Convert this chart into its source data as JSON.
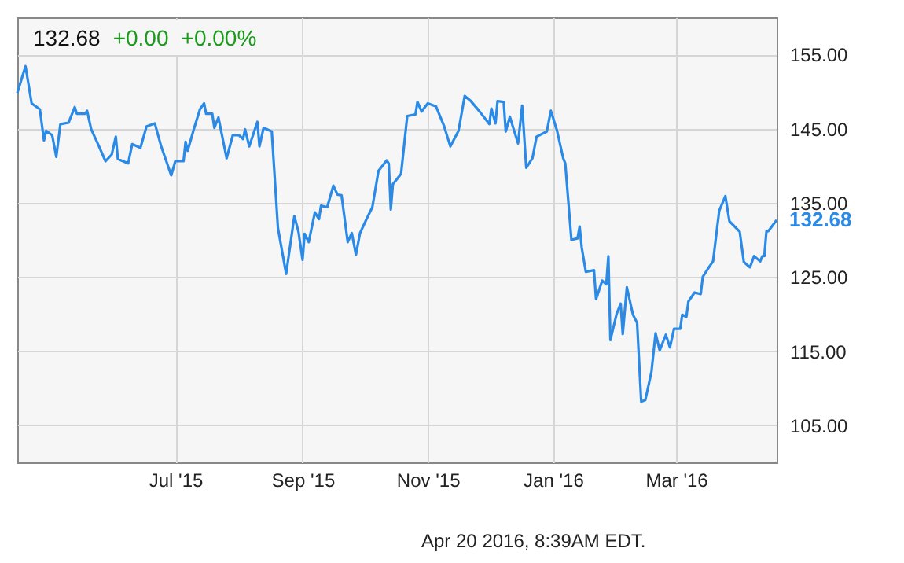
{
  "chart_data": {
    "type": "line",
    "x": [
      "2015-04-15",
      "2015-04-19",
      "2015-04-22",
      "2015-04-26",
      "2015-04-28",
      "2015-04-29",
      "2015-05-02",
      "2015-05-04",
      "2015-05-06",
      "2015-05-10",
      "2015-05-13",
      "2015-05-14",
      "2015-05-18",
      "2015-05-19",
      "2015-05-21",
      "2015-05-24",
      "2015-05-28",
      "2015-05-31",
      "2015-06-02",
      "2015-06-03",
      "2015-06-08",
      "2015-06-10",
      "2015-06-14",
      "2015-06-17",
      "2015-06-21",
      "2015-06-24",
      "2015-06-29",
      "2015-07-01",
      "2015-07-05",
      "2015-07-06",
      "2015-07-07",
      "2015-07-10",
      "2015-07-13",
      "2015-07-15",
      "2015-07-16",
      "2015-07-19",
      "2015-07-20",
      "2015-07-22",
      "2015-07-26",
      "2015-07-29",
      "2015-08-01",
      "2015-08-03",
      "2015-08-04",
      "2015-08-06",
      "2015-08-10",
      "2015-08-11",
      "2015-08-13",
      "2015-08-17",
      "2015-08-20",
      "2015-08-24",
      "2015-08-28",
      "2015-08-30",
      "2015-09-01",
      "2015-09-02",
      "2015-09-04",
      "2015-09-07",
      "2015-09-09",
      "2015-09-10",
      "2015-09-13",
      "2015-09-16",
      "2015-09-18",
      "2015-09-20",
      "2015-09-23",
      "2015-09-25",
      "2015-09-27",
      "2015-09-29",
      "2015-10-02",
      "2015-10-05",
      "2015-10-08",
      "2015-10-12",
      "2015-10-13",
      "2015-10-14",
      "2015-10-15",
      "2015-10-19",
      "2015-10-22",
      "2015-10-26",
      "2015-10-27",
      "2015-10-29",
      "2015-11-01",
      "2015-11-05",
      "2015-11-09",
      "2015-11-12",
      "2015-11-16",
      "2015-11-19",
      "2015-11-22",
      "2015-11-26",
      "2015-12-01",
      "2015-12-02",
      "2015-12-04",
      "2015-12-05",
      "2015-12-08",
      "2015-12-09",
      "2015-12-11",
      "2015-12-15",
      "2015-12-17",
      "2015-12-19",
      "2015-12-22",
      "2015-12-24",
      "2015-12-29",
      "2015-12-31",
      "2016-01-03",
      "2016-01-06",
      "2016-01-07",
      "2016-01-10",
      "2016-01-13",
      "2016-01-14",
      "2016-01-15",
      "2016-01-17",
      "2016-01-21",
      "2016-01-22",
      "2016-01-25",
      "2016-01-27",
      "2016-01-28",
      "2016-01-29",
      "2016-02-01",
      "2016-02-03",
      "2016-02-04",
      "2016-02-06",
      "2016-02-09",
      "2016-02-11",
      "2016-02-13",
      "2016-02-15",
      "2016-02-18",
      "2016-02-20",
      "2016-02-22",
      "2016-02-25",
      "2016-02-27",
      "2016-02-29",
      "2016-03-03",
      "2016-03-04",
      "2016-03-06",
      "2016-03-07",
      "2016-03-10",
      "2016-03-13",
      "2016-03-14",
      "2016-03-17",
      "2016-03-19",
      "2016-03-22",
      "2016-03-25",
      "2016-03-27",
      "2016-04-01",
      "2016-04-03",
      "2016-04-06",
      "2016-04-08",
      "2016-04-11",
      "2016-04-12",
      "2016-04-13",
      "2016-04-14",
      "2016-04-15",
      "2016-04-19"
    ],
    "series": [
      {
        "color": "#2a8ae6",
        "values": [
          149.8,
          153.4,
          148.4,
          147.6,
          143.4,
          144.7,
          144.1,
          141.2,
          145.6,
          145.8,
          147.9,
          147.0,
          147.0,
          147.4,
          144.9,
          143.1,
          140.6,
          141.5,
          143.9,
          140.9,
          140.3,
          142.9,
          142.4,
          145.3,
          145.7,
          142.7,
          138.7,
          140.6,
          140.6,
          143.2,
          142.0,
          144.9,
          147.6,
          148.4,
          147.0,
          147.0,
          145.1,
          146.5,
          141.0,
          144.1,
          144.1,
          143.6,
          144.9,
          142.6,
          145.9,
          142.6,
          145.1,
          144.6,
          131.6,
          125.4,
          133.2,
          131.1,
          127.3,
          130.8,
          129.7,
          133.7,
          132.8,
          134.6,
          134.4,
          137.3,
          136.1,
          136.0,
          129.7,
          130.9,
          128.0,
          130.9,
          132.7,
          134.4,
          139.3,
          140.7,
          140.3,
          134.1,
          137.5,
          138.9,
          146.7,
          146.9,
          148.6,
          147.3,
          148.4,
          148.0,
          145.3,
          142.6,
          144.7,
          149.4,
          148.7,
          147.4,
          145.6,
          147.7,
          145.7,
          148.7,
          148.6,
          144.6,
          146.6,
          143.0,
          148.1,
          139.7,
          141.0,
          143.9,
          144.6,
          147.4,
          144.7,
          141.0,
          140.3,
          130.0,
          130.2,
          131.8,
          129.0,
          125.7,
          125.9,
          122.0,
          124.5,
          124.0,
          127.8,
          116.5,
          120.0,
          121.4,
          117.3,
          123.6,
          119.9,
          118.8,
          108.2,
          108.4,
          112.2,
          117.4,
          115.1,
          117.2,
          115.5,
          118.0,
          118.0,
          119.9,
          119.6,
          121.7,
          122.9,
          122.7,
          125.0,
          126.3,
          127.1,
          133.9,
          135.9,
          132.5,
          131.1,
          127.0,
          126.3,
          127.8,
          127.1,
          127.8,
          127.8,
          131.1,
          131.2,
          132.68
        ]
      }
    ],
    "xlim": [
      "2015-04-15",
      "2016-04-19"
    ],
    "xticks": [
      {
        "value": "2015-07-01",
        "label": "Jul '15"
      },
      {
        "value": "2015-09-01",
        "label": "Sep '15"
      },
      {
        "value": "2015-11-01",
        "label": "Nov '15"
      },
      {
        "value": "2016-01-01",
        "label": "Jan '16"
      },
      {
        "value": "2016-03-01",
        "label": "Mar '16"
      }
    ],
    "ylim": [
      100,
      160
    ],
    "yticks": [
      {
        "value": 105,
        "label": "105.00"
      },
      {
        "value": 115,
        "label": "115.00"
      },
      {
        "value": 125,
        "label": "125.00"
      },
      {
        "value": 135,
        "label": "135.00"
      },
      {
        "value": 145,
        "label": "145.00"
      },
      {
        "value": 155,
        "label": "155.00"
      }
    ],
    "grid": true,
    "annotations": [
      "132.68",
      "+0.00",
      "+0.00%",
      {
        "text": "132.68",
        "x": "2016-04-19",
        "y": 132.68
      },
      "Apr 20 2016, 8:39AM EDT."
    ]
  }
}
